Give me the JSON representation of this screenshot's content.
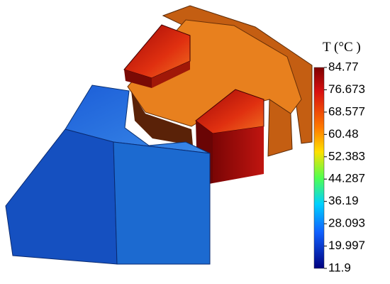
{
  "colorbar": {
    "title": "T (°C )",
    "ticks": [
      84.77,
      76.673,
      68.577,
      60.48,
      52.383,
      44.287,
      36.19,
      28.093,
      19.997,
      11.9
    ]
  }
}
